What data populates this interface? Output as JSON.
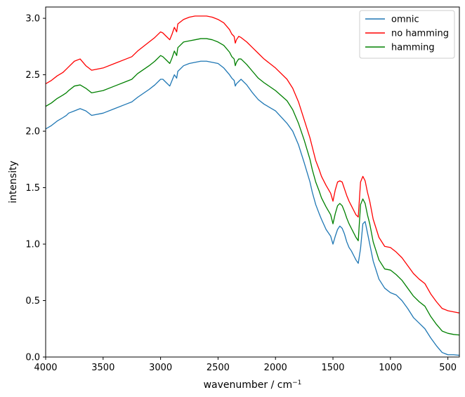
{
  "chart_data": {
    "type": "line",
    "title": "",
    "xlabel": "wavenumber / cm",
    "xlabel_superscript": "−1",
    "ylabel": "intensity",
    "xlim": [
      4000,
      400
    ],
    "ylim": [
      0.0,
      3.1
    ],
    "grid": false,
    "legend_position": "top-right",
    "xticks": [
      "4000",
      "3500",
      "3000",
      "2500",
      "2000",
      "1500",
      "1000",
      "500"
    ],
    "xtick_values": [
      4000,
      3500,
      3000,
      2500,
      2000,
      1500,
      1000,
      500
    ],
    "yticks": [
      "0.0",
      "0.5",
      "1.0",
      "1.5",
      "2.0",
      "2.5",
      "3.0"
    ],
    "ytick_values": [
      0.0,
      0.5,
      1.0,
      1.5,
      2.0,
      2.5,
      3.0
    ],
    "colors": {
      "omnic": "#1f77b4",
      "no hamming": "#ff0000",
      "hamming": "#008000"
    },
    "series": [
      {
        "name": "omnic",
        "color": "#1f77b4",
        "x": [
          4000,
          3950,
          3900,
          3850,
          3820,
          3800,
          3750,
          3700,
          3650,
          3600,
          3500,
          3400,
          3300,
          3250,
          3200,
          3100,
          3050,
          3000,
          2980,
          2950,
          2920,
          2900,
          2880,
          2860,
          2850,
          2800,
          2750,
          2700,
          2650,
          2600,
          2550,
          2500,
          2450,
          2400,
          2380,
          2360,
          2350,
          2340,
          2320,
          2300,
          2250,
          2200,
          2150,
          2100,
          2000,
          1900,
          1850,
          1800,
          1750,
          1700,
          1680,
          1650,
          1620,
          1600,
          1560,
          1520,
          1500,
          1480,
          1460,
          1440,
          1420,
          1400,
          1380,
          1360,
          1340,
          1320,
          1300,
          1280,
          1260,
          1240,
          1220,
          1200,
          1180,
          1150,
          1100,
          1050,
          1000,
          950,
          900,
          850,
          800,
          750,
          700,
          650,
          600,
          550,
          500,
          450,
          400
        ],
        "y": [
          2.02,
          2.05,
          2.09,
          2.12,
          2.14,
          2.16,
          2.18,
          2.2,
          2.18,
          2.14,
          2.16,
          2.2,
          2.24,
          2.26,
          2.3,
          2.37,
          2.41,
          2.46,
          2.46,
          2.43,
          2.4,
          2.45,
          2.5,
          2.47,
          2.53,
          2.58,
          2.6,
          2.61,
          2.62,
          2.62,
          2.61,
          2.6,
          2.56,
          2.5,
          2.47,
          2.45,
          2.4,
          2.42,
          2.44,
          2.46,
          2.41,
          2.34,
          2.28,
          2.24,
          2.18,
          2.07,
          2.0,
          1.88,
          1.72,
          1.55,
          1.46,
          1.35,
          1.27,
          1.22,
          1.13,
          1.07,
          1.0,
          1.07,
          1.13,
          1.16,
          1.14,
          1.09,
          1.02,
          0.97,
          0.94,
          0.9,
          0.86,
          0.83,
          0.96,
          1.18,
          1.2,
          1.1,
          1.0,
          0.85,
          0.69,
          0.61,
          0.57,
          0.55,
          0.5,
          0.43,
          0.35,
          0.3,
          0.25,
          0.17,
          0.1,
          0.04,
          0.02,
          0.02,
          0.015
        ]
      },
      {
        "name": "no hamming",
        "color": "#ff0000",
        "x": [
          4000,
          3950,
          3900,
          3850,
          3820,
          3800,
          3750,
          3700,
          3650,
          3600,
          3500,
          3400,
          3300,
          3250,
          3200,
          3100,
          3050,
          3000,
          2980,
          2950,
          2920,
          2900,
          2880,
          2860,
          2850,
          2800,
          2750,
          2700,
          2650,
          2600,
          2550,
          2500,
          2450,
          2400,
          2380,
          2360,
          2350,
          2340,
          2320,
          2300,
          2250,
          2200,
          2150,
          2100,
          2000,
          1900,
          1850,
          1800,
          1750,
          1700,
          1680,
          1650,
          1620,
          1600,
          1560,
          1520,
          1500,
          1480,
          1460,
          1440,
          1420,
          1400,
          1380,
          1360,
          1340,
          1320,
          1300,
          1280,
          1260,
          1240,
          1220,
          1200,
          1180,
          1150,
          1100,
          1050,
          1000,
          950,
          900,
          850,
          800,
          750,
          700,
          650,
          600,
          550,
          500,
          450,
          400
        ],
        "y": [
          2.42,
          2.45,
          2.49,
          2.52,
          2.55,
          2.57,
          2.62,
          2.64,
          2.58,
          2.54,
          2.56,
          2.6,
          2.64,
          2.66,
          2.71,
          2.79,
          2.83,
          2.88,
          2.87,
          2.84,
          2.81,
          2.86,
          2.92,
          2.88,
          2.95,
          2.99,
          3.01,
          3.02,
          3.02,
          3.02,
          3.01,
          2.99,
          2.96,
          2.9,
          2.86,
          2.84,
          2.78,
          2.81,
          2.84,
          2.83,
          2.79,
          2.74,
          2.69,
          2.64,
          2.56,
          2.46,
          2.38,
          2.26,
          2.1,
          1.94,
          1.86,
          1.74,
          1.66,
          1.6,
          1.52,
          1.45,
          1.38,
          1.48,
          1.55,
          1.56,
          1.55,
          1.49,
          1.43,
          1.38,
          1.34,
          1.3,
          1.26,
          1.24,
          1.55,
          1.6,
          1.56,
          1.46,
          1.38,
          1.22,
          1.06,
          0.98,
          0.97,
          0.93,
          0.88,
          0.81,
          0.74,
          0.69,
          0.65,
          0.56,
          0.49,
          0.43,
          0.41,
          0.4,
          0.39
        ]
      },
      {
        "name": "hamming",
        "color": "#008000",
        "x": [
          4000,
          3950,
          3900,
          3850,
          3820,
          3800,
          3750,
          3700,
          3650,
          3600,
          3500,
          3400,
          3300,
          3250,
          3200,
          3100,
          3050,
          3000,
          2980,
          2950,
          2920,
          2900,
          2880,
          2860,
          2850,
          2800,
          2750,
          2700,
          2650,
          2600,
          2550,
          2500,
          2450,
          2400,
          2380,
          2360,
          2350,
          2340,
          2320,
          2300,
          2250,
          2200,
          2150,
          2100,
          2000,
          1900,
          1850,
          1800,
          1750,
          1700,
          1680,
          1650,
          1620,
          1600,
          1560,
          1520,
          1500,
          1480,
          1460,
          1440,
          1420,
          1400,
          1380,
          1360,
          1340,
          1320,
          1300,
          1280,
          1260,
          1240,
          1220,
          1200,
          1180,
          1150,
          1100,
          1050,
          1000,
          950,
          900,
          850,
          800,
          750,
          700,
          650,
          600,
          550,
          500,
          450,
          400
        ],
        "y": [
          2.22,
          2.25,
          2.29,
          2.32,
          2.34,
          2.36,
          2.4,
          2.41,
          2.38,
          2.34,
          2.36,
          2.4,
          2.44,
          2.46,
          2.51,
          2.58,
          2.62,
          2.67,
          2.66,
          2.63,
          2.6,
          2.65,
          2.71,
          2.67,
          2.74,
          2.79,
          2.8,
          2.81,
          2.82,
          2.82,
          2.81,
          2.79,
          2.76,
          2.7,
          2.66,
          2.64,
          2.58,
          2.61,
          2.64,
          2.64,
          2.59,
          2.53,
          2.47,
          2.43,
          2.36,
          2.27,
          2.19,
          2.07,
          1.92,
          1.75,
          1.66,
          1.55,
          1.47,
          1.41,
          1.33,
          1.26,
          1.18,
          1.27,
          1.34,
          1.36,
          1.34,
          1.29,
          1.23,
          1.18,
          1.14,
          1.1,
          1.06,
          1.03,
          1.35,
          1.4,
          1.36,
          1.26,
          1.18,
          1.02,
          0.86,
          0.78,
          0.77,
          0.73,
          0.68,
          0.61,
          0.54,
          0.49,
          0.45,
          0.36,
          0.29,
          0.23,
          0.21,
          0.2,
          0.195
        ]
      }
    ]
  }
}
